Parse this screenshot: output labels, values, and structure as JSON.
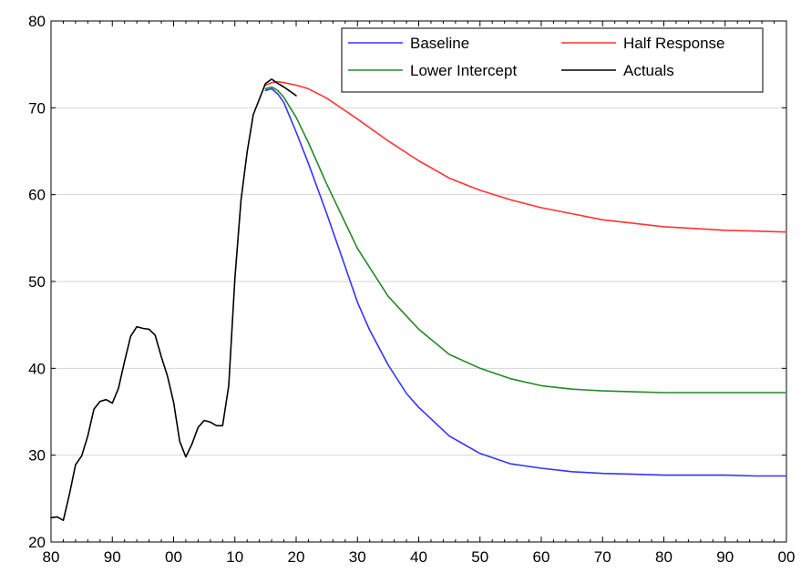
{
  "chart_data": {
    "type": "line",
    "title": "",
    "xlabel": "",
    "ylabel": "",
    "x_tick_labels": [
      "80",
      "90",
      "00",
      "10",
      "20",
      "30",
      "40",
      "50",
      "60",
      "70",
      "80",
      "90",
      "00"
    ],
    "x_tick_years": [
      1980,
      1990,
      2000,
      2010,
      2020,
      2030,
      2040,
      2050,
      2060,
      2070,
      2080,
      2090,
      2100
    ],
    "xlim": [
      1980,
      2100
    ],
    "ylim": [
      20,
      80
    ],
    "y_ticks": [
      20,
      30,
      40,
      50,
      60,
      70,
      80
    ],
    "grid": "horizontal",
    "legend_position": "top-right",
    "legend_columns": 2,
    "series": [
      {
        "name": "Baseline",
        "color": "#3333ff",
        "x": [
          2015,
          2016,
          2017,
          2018,
          2020,
          2022,
          2025,
          2028,
          2030,
          2032,
          2035,
          2038,
          2040,
          2045,
          2050,
          2055,
          2060,
          2065,
          2070,
          2075,
          2080,
          2085,
          2090,
          2095,
          2100
        ],
        "values": [
          72.0,
          72.2,
          71.6,
          70.6,
          67.2,
          63.6,
          57.8,
          51.7,
          47.6,
          44.4,
          40.4,
          37.1,
          35.5,
          32.2,
          30.2,
          29.0,
          28.5,
          28.1,
          27.9,
          27.8,
          27.7,
          27.7,
          27.7,
          27.6,
          27.6
        ]
      },
      {
        "name": "Half Response",
        "color": "#ff3333",
        "x": [
          2015,
          2016,
          2017,
          2018,
          2020,
          2022,
          2025,
          2030,
          2035,
          2040,
          2045,
          2050,
          2055,
          2060,
          2065,
          2070,
          2075,
          2080,
          2085,
          2090,
          2095,
          2100
        ],
        "values": [
          72.6,
          72.9,
          73.0,
          72.9,
          72.6,
          72.2,
          71.1,
          68.7,
          66.2,
          63.9,
          61.9,
          60.5,
          59.4,
          58.5,
          57.8,
          57.1,
          56.7,
          56.3,
          56.1,
          55.9,
          55.8,
          55.7
        ]
      },
      {
        "name": "Lower Intercept",
        "color": "#228b22",
        "x": [
          2015,
          2016,
          2017,
          2018,
          2020,
          2022,
          2025,
          2030,
          2035,
          2040,
          2045,
          2050,
          2055,
          2060,
          2065,
          2070,
          2075,
          2080,
          2085,
          2090,
          2095,
          2100
        ],
        "values": [
          72.2,
          72.4,
          72.0,
          71.2,
          68.9,
          66.0,
          61.2,
          53.8,
          48.3,
          44.5,
          41.6,
          40.0,
          38.8,
          38.0,
          37.6,
          37.4,
          37.3,
          37.2,
          37.2,
          37.2,
          37.2,
          37.2
        ]
      },
      {
        "name": "Actuals",
        "color": "#000000",
        "x": [
          1980,
          1981,
          1982,
          1983,
          1984,
          1985,
          1986,
          1987,
          1988,
          1989,
          1990,
          1991,
          1992,
          1993,
          1994,
          1995,
          1996,
          1997,
          1998,
          1999,
          2000,
          2001,
          2002,
          2003,
          2004,
          2005,
          2006,
          2007,
          2008,
          2009,
          2010,
          2011,
          2012,
          2013,
          2014,
          2015,
          2016,
          2017,
          2018,
          2019,
          2020
        ],
        "values": [
          22.8,
          22.9,
          22.5,
          25.5,
          28.9,
          29.9,
          32.2,
          35.3,
          36.2,
          36.4,
          36.0,
          37.7,
          40.8,
          43.7,
          44.8,
          44.6,
          44.5,
          43.8,
          41.3,
          39.1,
          36.1,
          31.6,
          29.8,
          31.3,
          33.2,
          34.0,
          33.8,
          33.4,
          33.4,
          38.0,
          50.4,
          59.4,
          64.9,
          69.2,
          71.0,
          72.8,
          73.3,
          72.8,
          72.4,
          71.9,
          71.4
        ]
      }
    ]
  }
}
